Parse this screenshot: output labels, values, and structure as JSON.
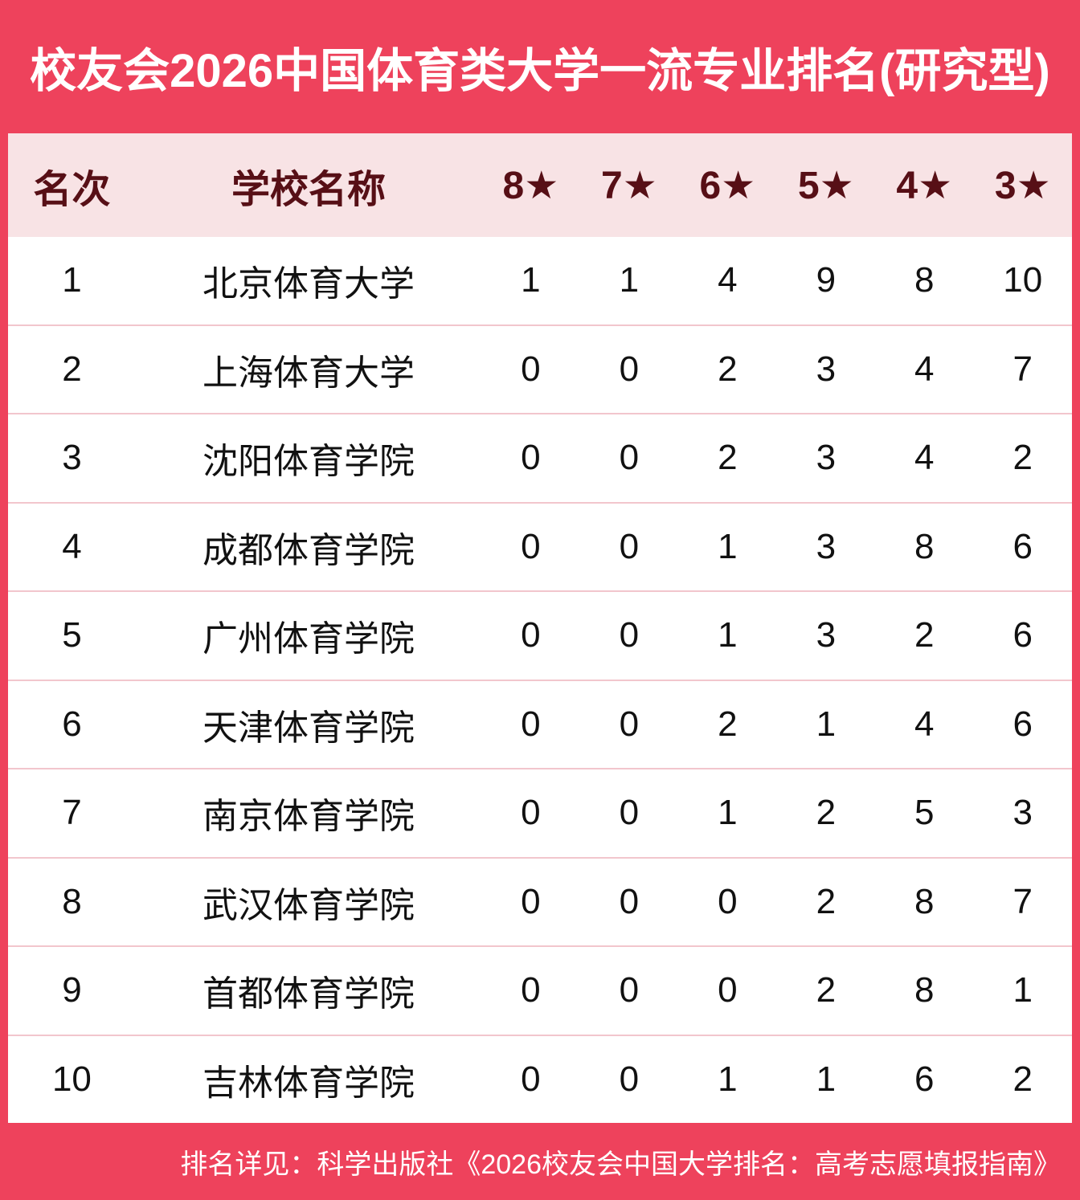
{
  "title": "校友会2026中国体育类大学一流专业排名(研究型)",
  "footer": {
    "note": "排名详见：科学出版社《2026校友会中国大学排名：高考志愿填报指南》"
  },
  "colors": {
    "primary_red": "#EE425C",
    "header_band_pink": "#F8E3E5",
    "header_text_maroon": "#570F16",
    "row_divider_pink": "#F2C6CD",
    "row_text": "#111111",
    "title_text": "#FFFFFF"
  },
  "table": {
    "columns": [
      "名次",
      "学校名称",
      "8★",
      "7★",
      "6★",
      "5★",
      "4★",
      "3★"
    ],
    "column_keys": [
      "rank",
      "school",
      "8star",
      "7star",
      "6star",
      "5star",
      "4star",
      "3star"
    ],
    "rows": [
      {
        "rank": "1",
        "school": "北京体育大学",
        "stars": [
          "1",
          "1",
          "4",
          "9",
          "8",
          "10"
        ]
      },
      {
        "rank": "2",
        "school": "上海体育大学",
        "stars": [
          "0",
          "0",
          "2",
          "3",
          "4",
          "7"
        ]
      },
      {
        "rank": "3",
        "school": "沈阳体育学院",
        "stars": [
          "0",
          "0",
          "2",
          "3",
          "4",
          "2"
        ]
      },
      {
        "rank": "4",
        "school": "成都体育学院",
        "stars": [
          "0",
          "0",
          "1",
          "3",
          "8",
          "6"
        ]
      },
      {
        "rank": "5",
        "school": "广州体育学院",
        "stars": [
          "0",
          "0",
          "1",
          "3",
          "2",
          "6"
        ]
      },
      {
        "rank": "6",
        "school": "天津体育学院",
        "stars": [
          "0",
          "0",
          "2",
          "1",
          "4",
          "6"
        ]
      },
      {
        "rank": "7",
        "school": "南京体育学院",
        "stars": [
          "0",
          "0",
          "1",
          "2",
          "5",
          "3"
        ]
      },
      {
        "rank": "8",
        "school": "武汉体育学院",
        "stars": [
          "0",
          "0",
          "0",
          "2",
          "8",
          "7"
        ]
      },
      {
        "rank": "9",
        "school": "首都体育学院",
        "stars": [
          "0",
          "0",
          "0",
          "2",
          "8",
          "1"
        ]
      },
      {
        "rank": "10",
        "school": "吉林体育学院",
        "stars": [
          "0",
          "0",
          "1",
          "1",
          "6",
          "2"
        ]
      }
    ]
  },
  "chart_data": {
    "type": "table",
    "title": "校友会2026中国体育类大学一流专业排名(研究型)",
    "columns": [
      "名次",
      "学校名称",
      "8★",
      "7★",
      "6★",
      "5★",
      "4★",
      "3★"
    ],
    "rows": [
      [
        1,
        "北京体育大学",
        1,
        1,
        4,
        9,
        8,
        10
      ],
      [
        2,
        "上海体育大学",
        0,
        0,
        2,
        3,
        4,
        7
      ],
      [
        3,
        "沈阳体育学院",
        0,
        0,
        2,
        3,
        4,
        2
      ],
      [
        4,
        "成都体育学院",
        0,
        0,
        1,
        3,
        8,
        6
      ],
      [
        5,
        "广州体育学院",
        0,
        0,
        1,
        3,
        2,
        6
      ],
      [
        6,
        "天津体育学院",
        0,
        0,
        2,
        1,
        4,
        6
      ],
      [
        7,
        "南京体育学院",
        0,
        0,
        1,
        2,
        5,
        3
      ],
      [
        8,
        "武汉体育学院",
        0,
        0,
        0,
        2,
        8,
        7
      ],
      [
        9,
        "首都体育学院",
        0,
        0,
        0,
        2,
        8,
        1
      ],
      [
        10,
        "吉林体育学院",
        0,
        0,
        1,
        1,
        6,
        2
      ]
    ],
    "footnote": "排名详见：科学出版社《2026校友会中国大学排名：高考志愿填报指南》"
  }
}
